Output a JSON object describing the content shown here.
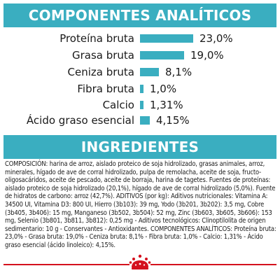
{
  "header_components": "COMPONENTES ANALÍTICOS",
  "header_ingredients": "INGREDIENTES",
  "analysis": [
    {
      "label": "Proteína bruta",
      "value": "23,0%",
      "percent": 23.0
    },
    {
      "label": "Grasa bruta",
      "value": "19,0%",
      "percent": 19.0
    },
    {
      "label": "Ceniza bruta",
      "value": "8,1%",
      "percent": 8.1
    },
    {
      "label": "Fibra bruta",
      "value": "1,0%",
      "percent": 1.0
    },
    {
      "label": "Calcio",
      "value": "1,31%",
      "percent": 1.31
    },
    {
      "label": "Ácido graso esencial",
      "value": "4,15%",
      "percent": 4.15
    }
  ],
  "ingredients_text": "COMPOSICIÓN: harina de arroz, aislado proteico de soja hidrolizado, grasas animales, arroz, minerales, hígado de ave de corral hidrolizado, pulpa de remolacha, aceite de soja, fructo-oligosacáridos, aceite de pescado, aceite de borraja, harina de tagetes. Fuentes de proteínas: aislado proteico de soja hidrolizado (20,1%), hígado de ave de corral hidrolizado (5,0%). Fuente de hidratos de carbono: arroz (42,7%). ADITIVOS (por kg): Aditivos nutricionales: Vitamina A: 34500 UI, Vitamina D3: 800 UI, Hierro (3b103): 39 mg, Yodo (3b201, 3b202): 3,5 mg, Cobre (3b405, 3b406): 15 mg, Manganeso (3b502, 3b504): 52 mg, Zinc (3b603, 3b605, 3b606): 153 mg, Selenio (3b801, 3b811, 3b812): 0,25 mg - Aditivos tecnológicos: Clinoptilolita de origen sedimentario: 10 g - Conservantes - Antioxidantes. COMPONENTES ANALÍTICOS: Proteína bruta: 23,0% - Grasa bruta: 19,0% - Ceniza bruta: 8,1% - Fibra bruta: 1,0% - Calcio: 1,31% - Ácido graso esencial (ácido linoleico): 4,15%.",
  "brand_logo": "royal-canin-crown-logo",
  "colors": {
    "accent": "#3aaec0",
    "brand_red": "#d4111e",
    "text": "#1a1a1a"
  }
}
